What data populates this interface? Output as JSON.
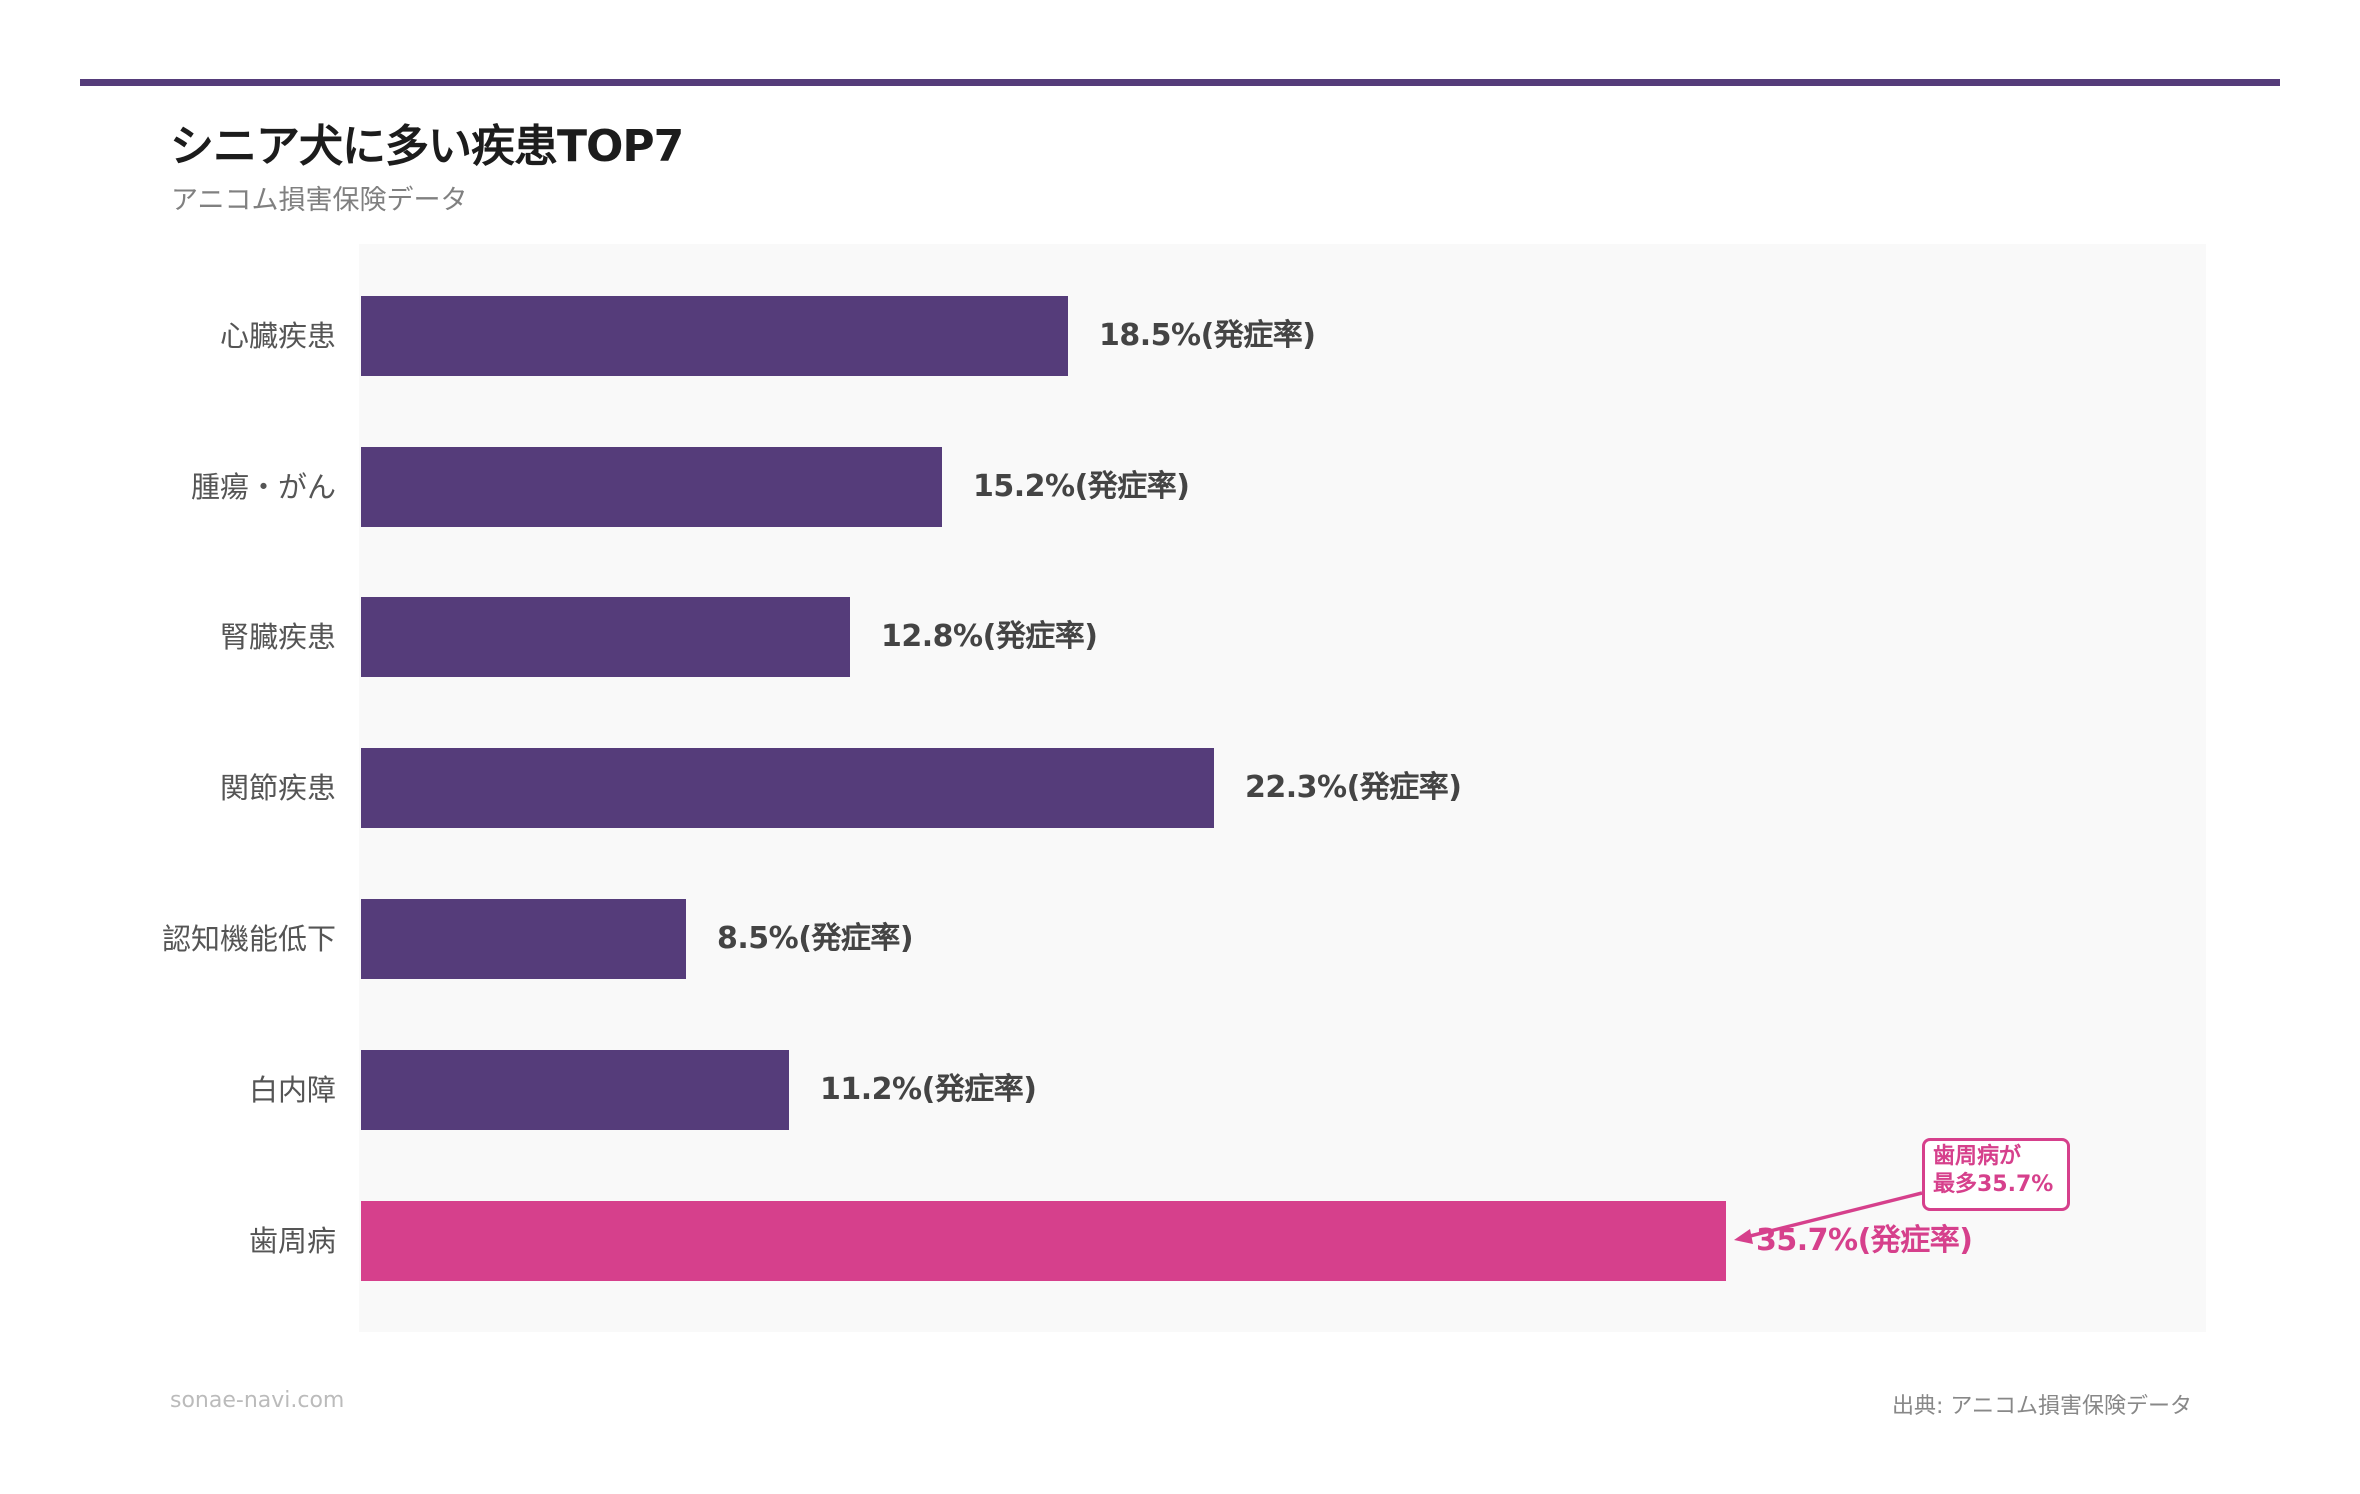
{
  "header": {
    "title": "シニア犬に多い疾患TOP7",
    "subtitle": "アニコム損害保険データ"
  },
  "colors": {
    "primary": "#553C7A",
    "highlight": "#D6408C",
    "plot_background": "#F9F9F9",
    "label_text": "#444444"
  },
  "chart_data": {
    "type": "bar",
    "orientation": "horizontal",
    "title": "シニア犬に多い疾患TOP7",
    "subtitle": "アニコム損害保険データ",
    "xlabel": "",
    "ylabel": "",
    "unit": "%",
    "value_suffix": "(発症率)",
    "grid": false,
    "categories": [
      "心臓疾患",
      "腫瘍・がん",
      "腎臓疾患",
      "関節疾患",
      "認知機能低下",
      "白内障",
      "歯周病"
    ],
    "values": [
      18.5,
      15.2,
      12.8,
      22.3,
      8.5,
      11.2,
      35.7
    ],
    "highlight_index": 6,
    "annotations": [
      {
        "text": "歯周病が最多35.7%",
        "target": "歯周病"
      }
    ]
  },
  "bars": [
    {
      "label": "心臓疾患",
      "value": 18.5,
      "value_label": "18.5%(発症率)"
    },
    {
      "label": "腫瘍・がん",
      "value": 15.2,
      "value_label": "15.2%(発症率)"
    },
    {
      "label": "腎臓疾患",
      "value": 12.8,
      "value_label": "12.8%(発症率)"
    },
    {
      "label": "関節疾患",
      "value": 22.3,
      "value_label": "22.3%(発症率)"
    },
    {
      "label": "認知機能低下",
      "value": 8.5,
      "value_label": "8.5%(発症率)"
    },
    {
      "label": "白内障",
      "value": 11.2,
      "value_label": "11.2%(発症率)"
    },
    {
      "label": "歯周病",
      "value": 35.7,
      "value_label": "35.7%(発症率)"
    }
  ],
  "annotation": {
    "line1": "歯周病が",
    "line2": "最多35.7%"
  },
  "footer": {
    "site": "sonae-navi.com",
    "source": "出典: アニコム損害保険データ"
  }
}
